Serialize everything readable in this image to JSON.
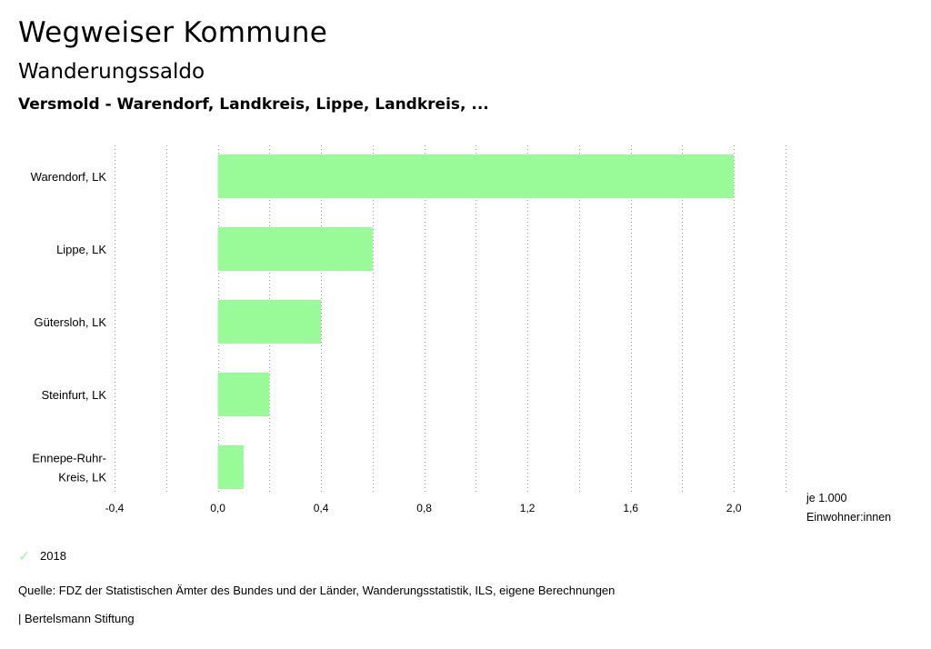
{
  "header": {
    "title": "Wegweiser Kommune",
    "subtitle": "Wanderungssaldo",
    "region": "Versmold - Warendorf, Landkreis, Lippe, Landkreis, ..."
  },
  "chart_data": {
    "type": "bar",
    "orientation": "horizontal",
    "categories": [
      "Warendorf, LK",
      "Lippe, LK",
      "Gütersloh, LK",
      "Steinfurt, LK",
      "Ennepe-Ruhr-Kreis, LK"
    ],
    "category_lines": [
      [
        "Warendorf, LK"
      ],
      [
        "Lippe, LK"
      ],
      [
        "Gütersloh, LK"
      ],
      [
        "Steinfurt, LK"
      ],
      [
        "Ennepe-Ruhr-",
        "Kreis, LK"
      ]
    ],
    "series": [
      {
        "name": "2018",
        "values": [
          2.0,
          0.6,
          0.4,
          0.2,
          0.1
        ],
        "color": "#98fb98"
      }
    ],
    "xlim": [
      -0.4,
      2.2
    ],
    "ticks": [
      -0.4,
      0.0,
      0.4,
      0.8,
      1.2,
      1.6,
      2.0
    ],
    "tick_labels": [
      "-0,4",
      "0,0",
      "0,4",
      "0,8",
      "1,2",
      "1,6",
      "2,0"
    ],
    "gridline_step": 0.2,
    "unit_label": [
      "je 1.000",
      "Einwohner:innen"
    ],
    "grid": true,
    "legend_position": "bottom-left"
  },
  "legend": {
    "label": "2018",
    "icon": "check-icon",
    "color": "#98fb98"
  },
  "footer": {
    "source": "Quelle: FDZ der Statistischen Ämter des Bundes und der Länder, Wanderungsstatistik, ILS, eigene Berechnungen",
    "brand": "| Bertelsmann Stiftung"
  }
}
